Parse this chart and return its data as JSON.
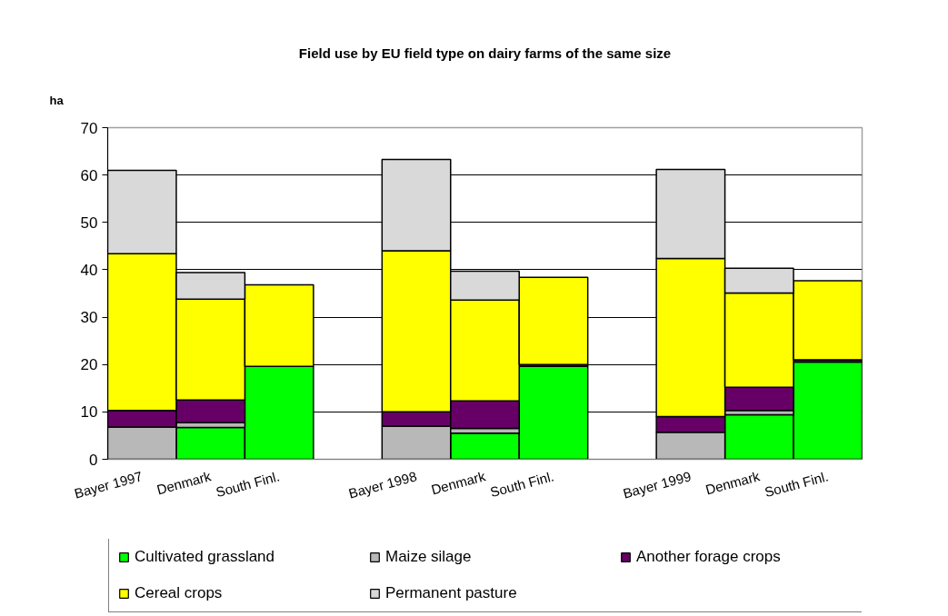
{
  "chart_data": {
    "type": "bar",
    "title": "Field use by EU field type on dairy farms of the same size",
    "ylabel": "ha",
    "categories": [
      "Bayer 1997",
      "Denmark",
      "South Finl.",
      null,
      "Bayer 1998",
      "Denmark",
      "South Finl.",
      null,
      "Bayer 1999",
      "Denmark",
      "South Finl."
    ],
    "stacked": true,
    "series": [
      {
        "name": "Cultivated grassland",
        "color": "#00ff00",
        "values": [
          null,
          6.7,
          19.6,
          null,
          null,
          5.5,
          19.6,
          null,
          null,
          9.4,
          20.5
        ]
      },
      {
        "name": "Maize silage",
        "color": "#b8b8b8",
        "values": [
          6.8,
          1.0,
          null,
          null,
          7.0,
          1.0,
          null,
          null,
          5.7,
          0.9,
          null
        ]
      },
      {
        "name": "Another forage crops",
        "color": "#660066",
        "values": [
          3.5,
          4.8,
          null,
          null,
          3.0,
          5.8,
          0.4,
          null,
          3.3,
          4.9,
          0.5
        ]
      },
      {
        "name": "Cereal crops",
        "color": "#ffff00",
        "values": [
          33.1,
          21.3,
          17.2,
          null,
          34.0,
          21.3,
          18.4,
          null,
          33.4,
          19.9,
          16.7
        ]
      },
      {
        "name": "Permanent pasture",
        "color": "#d9d9d9",
        "values": [
          17.6,
          5.6,
          null,
          null,
          19.3,
          6.1,
          null,
          null,
          18.8,
          5.2,
          null
        ]
      }
    ],
    "ylim": [
      0,
      70
    ],
    "yticks": [
      0,
      10,
      20,
      30,
      40,
      50,
      60,
      70
    ],
    "grid": "y",
    "legend": "bottom"
  }
}
